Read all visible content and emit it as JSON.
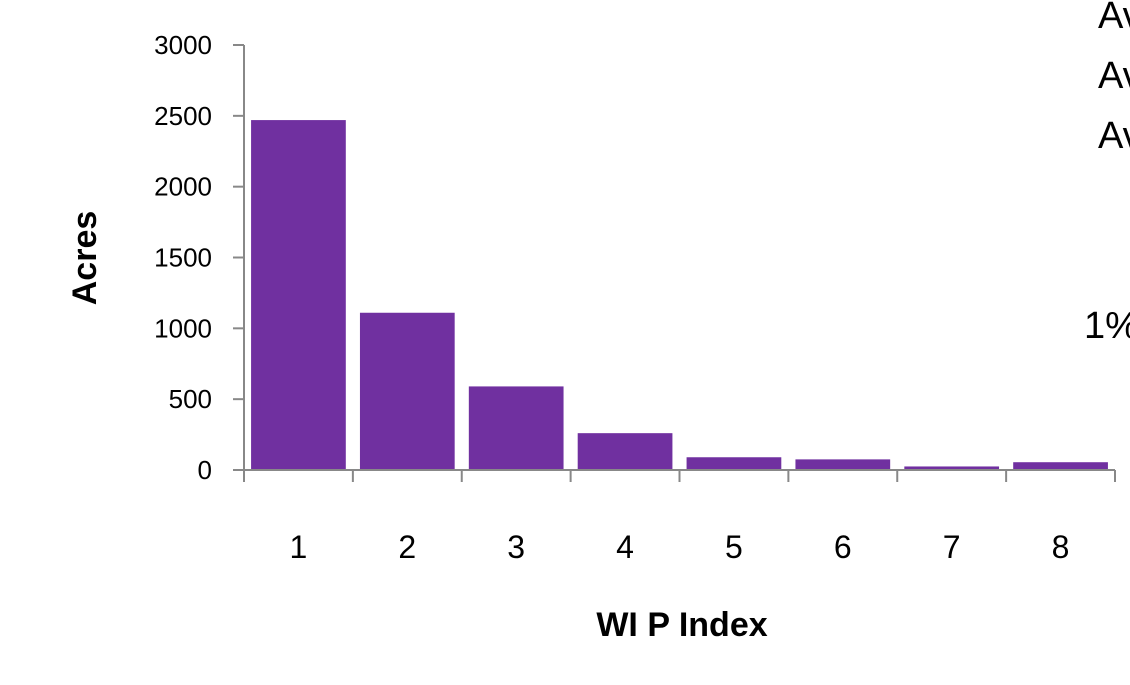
{
  "chart_data": {
    "type": "bar",
    "categories": [
      "1",
      "2",
      "3",
      "4",
      "5",
      "6",
      "7",
      "8"
    ],
    "values": [
      2470,
      1110,
      590,
      260,
      90,
      75,
      25,
      55
    ],
    "xlabel": "WI P Index",
    "ylabel": "Acres",
    "ylim": [
      0,
      3000
    ],
    "yticks": [
      "0",
      "500",
      "1000",
      "1500",
      "2000",
      "2500",
      "3000"
    ],
    "bar_color": "#7030A0",
    "grid": false,
    "legend": "none"
  },
  "side_text": {
    "line1": "Av",
    "line2": "Av",
    "line3": "Av",
    "line4": "1%"
  }
}
